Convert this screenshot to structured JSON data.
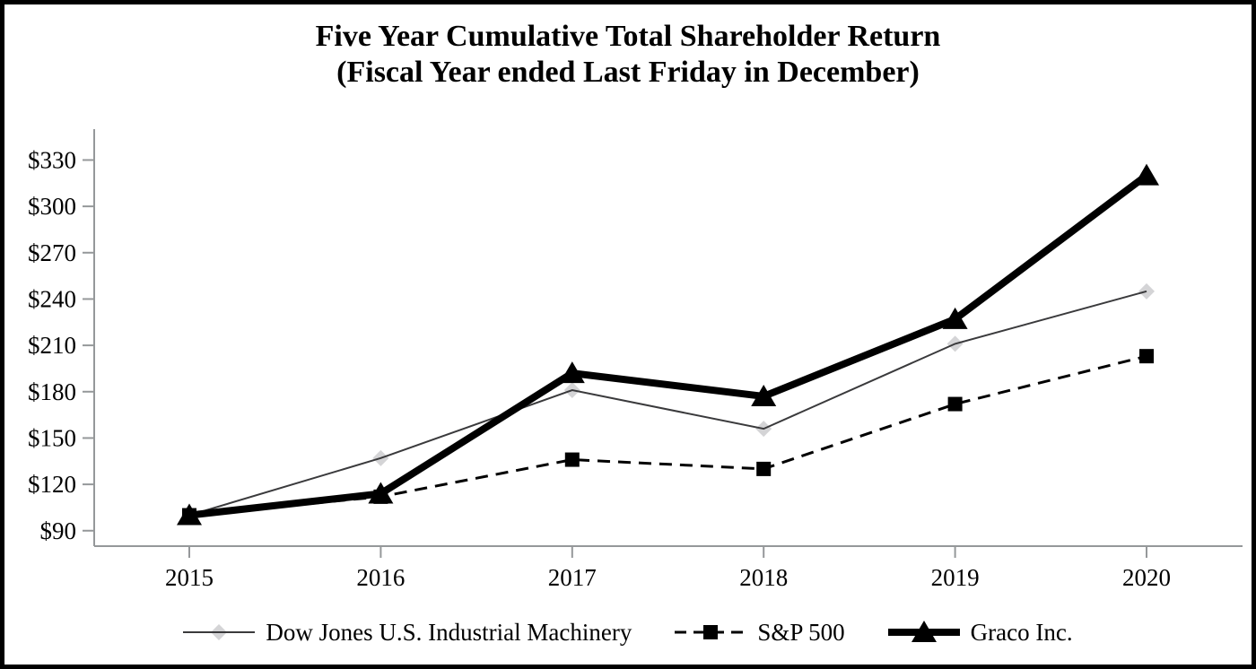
{
  "title": {
    "line1": "Five Year Cumulative Total Shareholder Return",
    "line2": "(Fiscal Year ended Last Friday in December)"
  },
  "chart_data": {
    "type": "line",
    "title": "Five Year Cumulative Total Shareholder Return (Fiscal Year ended Last Friday in December)",
    "xlabel": "",
    "ylabel": "",
    "grid": false,
    "legend_position": "bottom",
    "categories": [
      "2015",
      "2016",
      "2017",
      "2018",
      "2019",
      "2020"
    ],
    "ylim": [
      80,
      350
    ],
    "y_ticks": [
      {
        "value": 330,
        "label": "$330"
      },
      {
        "value": 300,
        "label": "$300"
      },
      {
        "value": 270,
        "label": "$270"
      },
      {
        "value": 240,
        "label": "$240"
      },
      {
        "value": 210,
        "label": "$210"
      },
      {
        "value": 180,
        "label": "$180"
      },
      {
        "value": 150,
        "label": "$150"
      },
      {
        "value": 120,
        "label": "$120"
      },
      {
        "value": 90,
        "label": "$90"
      }
    ],
    "axis_color": "#95989A",
    "series": [
      {
        "name": "Dow Jones U.S. Industrial Machinery",
        "values": [
          100,
          137,
          181,
          156,
          211,
          245
        ],
        "line_color": "#3A3A3C",
        "line_width": 2,
        "dash": "",
        "marker": "diamond",
        "marker_color": "#D4D4D6",
        "marker_behind_line": true
      },
      {
        "name": "S&P 500",
        "values": [
          100,
          112,
          136,
          130,
          172,
          203
        ],
        "line_color": "#000000",
        "line_width": 3,
        "dash": "14 9",
        "marker": "square",
        "marker_color": "#000000",
        "marker_behind_line": false
      },
      {
        "name": "Graco Inc.",
        "values": [
          100,
          114,
          192,
          177,
          227,
          320
        ],
        "line_color": "#000000",
        "line_width": 8,
        "dash": "",
        "marker": "triangle",
        "marker_color": "#000000",
        "marker_behind_line": false
      }
    ]
  }
}
